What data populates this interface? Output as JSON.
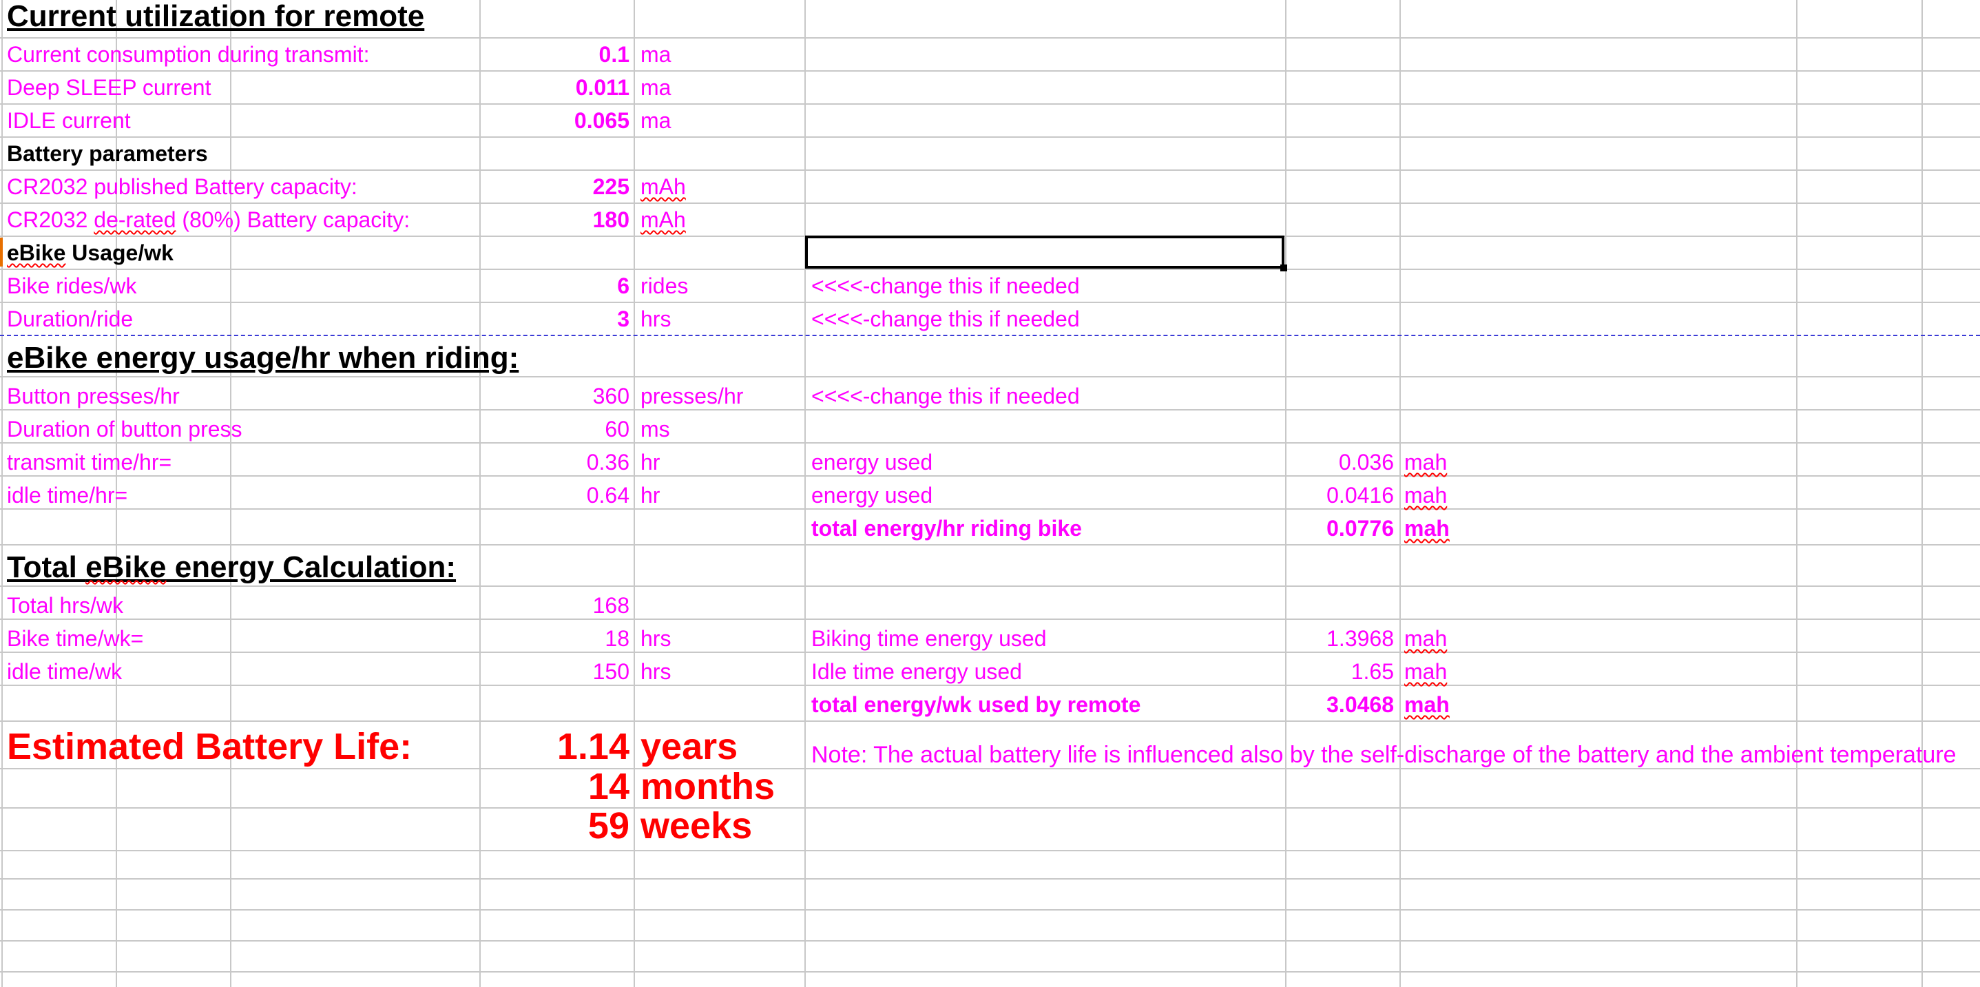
{
  "sheet": {
    "title": "Current utilization  for remote",
    "current": {
      "transmit": {
        "label": "Current consumption during transmit:",
        "value": "0.1",
        "unit": "ma"
      },
      "deep_sleep": {
        "label": "Deep SLEEP current",
        "value": "0.011",
        "unit": "ma"
      },
      "idle": {
        "label": "IDLE current",
        "value": "0.065",
        "unit": "ma"
      }
    },
    "battery": {
      "heading": "Battery parameters",
      "published": {
        "label": "CR2032 published Battery capacity:",
        "value": "225",
        "unit": "mAh"
      },
      "derated_pre": "CR2032 ",
      "derated_word": "de-rated",
      "derated_post": " (80%) Battery capacity:",
      "derated_value": "180",
      "derated_unit": "mAh"
    },
    "usage": {
      "heading_word": "eBike",
      "heading_rest": " Usage/wk",
      "rides": {
        "label": "Bike rides/wk",
        "value": "6",
        "unit": "rides",
        "note": "<<<<-change this if needed"
      },
      "duration": {
        "label": "Duration/ride",
        "value": "3",
        "unit": "hrs",
        "note": "<<<<-change this if needed"
      }
    },
    "hourly": {
      "heading": "eBike energy usage/hr when riding:",
      "presses": {
        "label": "Button presses/hr",
        "value": "360",
        "unit": "presses/hr",
        "note": "<<<<-change this if needed"
      },
      "press_duration": {
        "label": "Duration of button press",
        "value": "60",
        "unit": "ms"
      },
      "transmit_time": {
        "label": "transmit time/hr=",
        "value": "0.36",
        "unit": "hr",
        "energy_label": "energy used",
        "energy_value": "0.036",
        "energy_unit": "mah"
      },
      "idle_time": {
        "label": "idle time/hr=",
        "value": "0.64",
        "unit": "hr",
        "energy_label": "energy used",
        "energy_value": "0.0416",
        "energy_unit": "mah"
      },
      "total": {
        "label": "total energy/hr riding bike",
        "value": "0.0776",
        "unit": "mah"
      }
    },
    "total": {
      "heading_pre": "Total ",
      "heading_word": "eBike",
      "heading_post": " energy Calculation:",
      "hours": {
        "label": "Total hrs/wk",
        "value": "168"
      },
      "bike_time": {
        "label": "Bike time/wk=",
        "value": "18",
        "unit": "hrs",
        "energy_label": "Biking time energy used",
        "energy_value": "1.3968",
        "energy_unit": "mah"
      },
      "idle_time": {
        "label": "idle time/wk",
        "value": "150",
        "unit": "hrs",
        "energy_label": "Idle time energy used",
        "energy_value": "1.65",
        "energy_unit": "mah"
      },
      "weekly": {
        "label": "total energy/wk used by remote",
        "value": "3.0468",
        "unit": "mah"
      }
    },
    "life": {
      "label": "Estimated Battery Life:",
      "years_value": "1.14",
      "years_unit": "years",
      "months_value": "14",
      "months_unit": "months",
      "weeks_value": "59",
      "weeks_unit": "weeks",
      "note": "Note: The actual battery life is influenced also by the self-discharge of the battery and the ambient temperature"
    }
  }
}
